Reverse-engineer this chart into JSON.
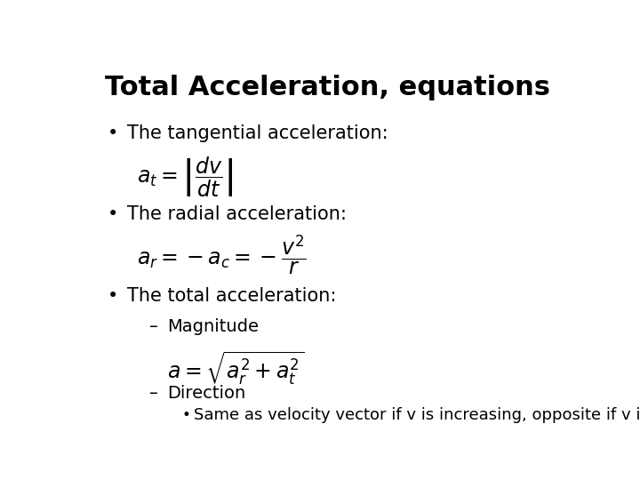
{
  "title": "Total Acceleration, equations",
  "title_fontsize": 22,
  "title_fontweight": "bold",
  "background_color": "#ffffff",
  "text_color": "#000000",
  "bullet1_text": "The tangential acceleration:",
  "bullet1_eq": "$a_t = \\left|\\dfrac{dv}{dt}\\right|$",
  "bullet2_text": "The radial acceleration:",
  "bullet2_eq": "$a_r = -a_c = -\\dfrac{v^2}{r}$",
  "bullet3_text": "The total acceleration:",
  "sub1_text": "Magnitude",
  "sub1_eq": "$a = \\sqrt{a_r^2 + a_t^2}$",
  "sub2_text": "Direction",
  "sub2_bullet": "Same as velocity vector if v is increasing, opposite if v is decreasing",
  "body_fontsize": 15,
  "eq_fontsize": 14,
  "sub_fontsize": 14,
  "sub_bullet_fontsize": 13
}
